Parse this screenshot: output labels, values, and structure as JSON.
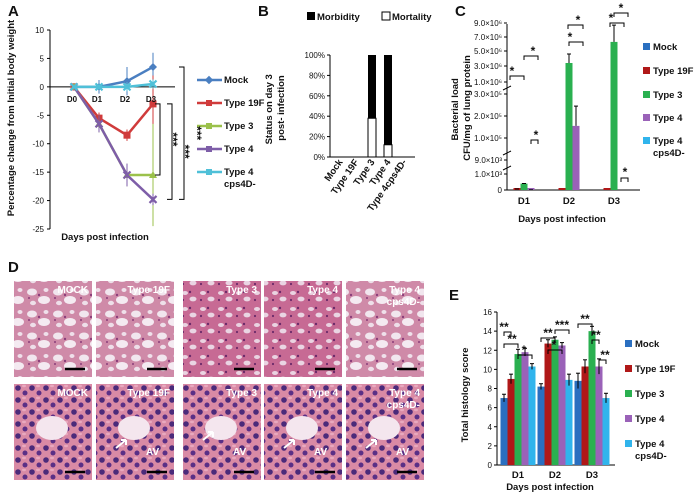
{
  "panels": {
    "A": "A",
    "B": "B",
    "C": "C",
    "D": "D",
    "E": "E"
  },
  "colors": {
    "mock": "#4a7fc1",
    "t19f": "#d03b3b",
    "t3": "#9bc14b",
    "t4": "#7e5ea8",
    "t4cps": "#4fc0d8",
    "barMock": "#2a6fc0",
    "bar19f": "#b01818",
    "bar3": "#2ab050",
    "bar4": "#9a62b8",
    "bar4cps": "#30b4ec"
  },
  "panelD": {
    "top": [
      "MOCK",
      "Type 19F",
      "Type 3",
      "Type 4",
      "Type 4 cps4D-"
    ],
    "bottom": [
      "MOCK",
      "Type 19F",
      "Type 3",
      "Type 4",
      "Type 4 cps4D-"
    ],
    "av": "AV"
  },
  "chart_data": [
    {
      "id": "A",
      "type": "line",
      "xlabel": "Days post infection",
      "ylabel": "Percentage change from Initial body weight",
      "ylim": [
        -25,
        10
      ],
      "yticks": [
        "10",
        "5",
        "0",
        "-5",
        "-10",
        "-15",
        "-20",
        "-25"
      ],
      "categories": [
        "D0",
        "D1",
        "D2",
        "D3"
      ],
      "series": [
        {
          "name": "Mock",
          "values": [
            0,
            0,
            1,
            3.5
          ]
        },
        {
          "name": "Type 19F",
          "values": [
            0,
            -5.5,
            -8.5,
            -3
          ]
        },
        {
          "name": "Type 3",
          "values": [
            0,
            -6.5,
            -15.5,
            -15.5
          ]
        },
        {
          "name": "Type 4",
          "values": [
            0,
            -6.5,
            -15.5,
            -19.8
          ]
        },
        {
          "name": "Type 4 cps4D-",
          "values": [
            0,
            0,
            0,
            0.5
          ]
        }
      ],
      "significance": [
        "***",
        "***",
        "***"
      ]
    },
    {
      "id": "B",
      "type": "bar",
      "ylabel": "Status on day 3 post- infection",
      "ylim": [
        0,
        100
      ],
      "yticks": [
        "100%",
        "80%",
        "60%",
        "40%",
        "20%",
        "0%"
      ],
      "categories": [
        "Mock",
        "Type 19F",
        "Type 3",
        "Type 4",
        "Type 4cps4D-"
      ],
      "series": [
        {
          "name": "Morbidity",
          "values": [
            0,
            0,
            62,
            88,
            0
          ]
        },
        {
          "name": "Mortality",
          "values": [
            0,
            0,
            38,
            12,
            0
          ]
        }
      ]
    },
    {
      "id": "C",
      "type": "bar",
      "xlabel": "Days post infection",
      "ylabel": "Bacterial load CFU/mg of lung protein",
      "yticks": [
        "9.0×10⁶",
        "7.0×10⁶",
        "5.0×10⁶",
        "3.0×10⁶",
        "1.0×10⁶",
        "3.0×10⁵",
        "2.0×10⁵",
        "1.0×10⁵",
        "9.0×10³",
        "1.0×10³",
        "0"
      ],
      "categories": [
        "D1",
        "D2",
        "D3"
      ],
      "series": [
        {
          "name": "Mock",
          "values": [
            0,
            0,
            0
          ]
        },
        {
          "name": "Type 19F",
          "values": [
            40,
            2,
            1
          ]
        },
        {
          "name": "Type 3",
          "values": [
            400,
            3400000,
            6300000
          ]
        },
        {
          "name": "Type 4",
          "values": [
            8,
            155000,
            0
          ]
        },
        {
          "name": "Type 4 cps4D-",
          "values": [
            0,
            0,
            0
          ]
        }
      ],
      "significance": [
        "*",
        "*",
        "*",
        "*",
        "*",
        "*",
        "*",
        "*"
      ]
    },
    {
      "id": "E",
      "type": "bar",
      "xlabel": "Days post infection",
      "ylabel": "Total histology score",
      "ylim": [
        0,
        16
      ],
      "yticks": [
        "16",
        "14",
        "12",
        "10",
        "8",
        "6",
        "4",
        "2",
        "0"
      ],
      "categories": [
        "D1",
        "D2",
        "D3"
      ],
      "series": [
        {
          "name": "Mock",
          "values": [
            7.0,
            8.2,
            8.8
          ]
        },
        {
          "name": "Type 19F",
          "values": [
            9.0,
            12.7,
            10.3
          ]
        },
        {
          "name": "Type 3",
          "values": [
            11.6,
            13.1,
            14.0
          ]
        },
        {
          "name": "Type 4",
          "values": [
            11.8,
            12.5,
            10.3
          ]
        },
        {
          "name": "Type 4 cps4D-",
          "values": [
            10.3,
            8.9,
            7.0
          ]
        }
      ],
      "significance": [
        "**",
        "**",
        "*",
        "**",
        "*",
        "***",
        "**",
        "**",
        "**"
      ]
    }
  ]
}
